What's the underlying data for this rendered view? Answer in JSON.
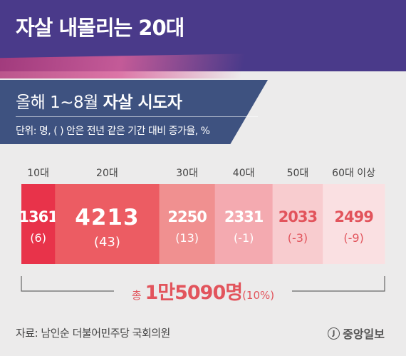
{
  "header": {
    "title": "자살 내몰리는 20대"
  },
  "subtitle": {
    "prefix": "올해 1~8월",
    "bold": "자살 시도자",
    "unit_note": "단위: 명, ( ) 안은 전년 같은 기간 대비 증가율, %"
  },
  "chart_data": {
    "type": "bar",
    "title": "",
    "categories": [
      "10대",
      "20대",
      "30대",
      "40대",
      "50대",
      "60대 이상"
    ],
    "values": [
      1361,
      4213,
      2250,
      2331,
      2033,
      2499
    ],
    "change_labels": [
      "(6)",
      "(43)",
      "(13)",
      "(-1)",
      "(-3)",
      "(-9)"
    ],
    "value_labels": [
      "1361",
      "4213",
      "2250",
      "2331",
      "2033",
      "2499"
    ],
    "total": {
      "prefix": "총",
      "value": "1만5090명",
      "change": "(10%)"
    },
    "colors": [
      "#e8334a",
      "#ec5c63",
      "#f09090",
      "#f4aab0",
      "#f8cccf",
      "#fae0e2"
    ],
    "label_colors": [
      "#ffffff",
      "#ffffff",
      "#ffffff",
      "#ffffff",
      "#e2545c",
      "#e2545c"
    ]
  },
  "footer": {
    "source": "자료: 남인순 더불어민주당 국회의원",
    "logo": "중앙일보",
    "logo_mark": "J"
  }
}
